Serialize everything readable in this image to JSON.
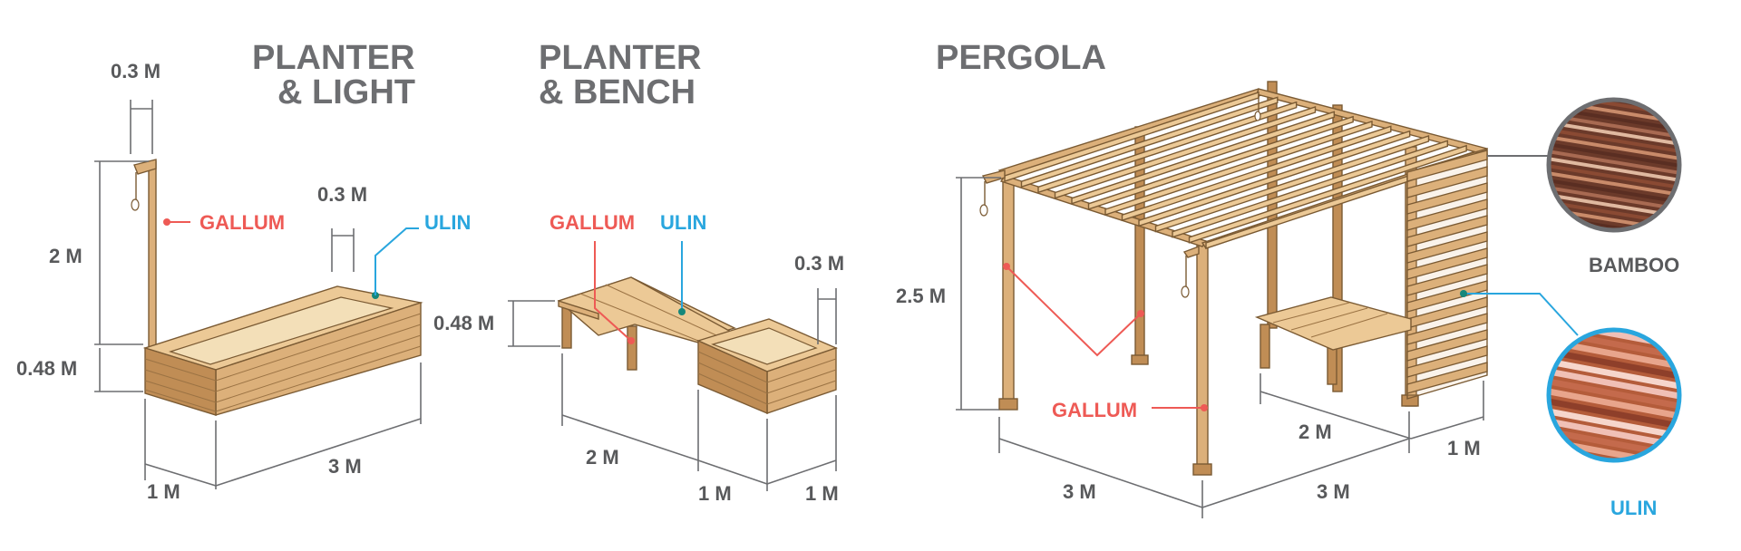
{
  "titles": {
    "planter_light_line1": "PLANTER",
    "planter_light_line2": "& LIGHT",
    "planter_bench_line1": "PLANTER",
    "planter_bench_line2": "& BENCH",
    "pergola": "PERGOLA"
  },
  "dimensions": {
    "pl_lamp_offset": "0.3 M",
    "pl_height": "2 M",
    "pl_box_height": "0.48 M",
    "pl_wall": "0.3 M",
    "pl_width": "1 M",
    "pl_length": "3 M",
    "pb_height": "0.48 M",
    "pb_wall": "0.3 M",
    "pb_bench_length": "2 M",
    "pb_box_width": "1 M",
    "pb_box_depth": "1 M",
    "pg_height": "2.5 M",
    "pg_front": "3 M",
    "pg_side": "3 M",
    "pg_bench": "2 M",
    "pg_bench_depth": "1 M"
  },
  "labels": {
    "pl_gallum": "GALLUM",
    "pl_ulin": "ULIN",
    "pb_gallum": "GALLUM",
    "pb_ulin": "ULIN",
    "pg_gallum": "GALLUM",
    "bamboo": "BAMBOO",
    "ulin_detail": "ULIN"
  },
  "colors": {
    "gallum": "#ee5a55",
    "ulin": "#29a6de",
    "title": "#6d6e71",
    "wood": "#dcb07a"
  }
}
